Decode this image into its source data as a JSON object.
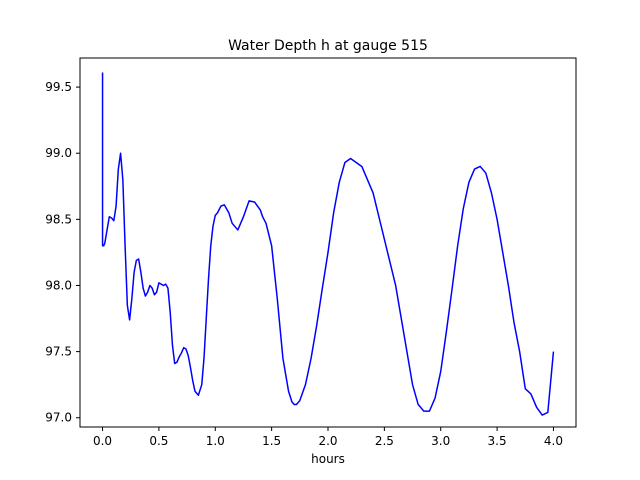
{
  "chart_data": {
    "type": "line",
    "title": "Water Depth h at gauge 515",
    "xlabel": "hours",
    "ylabel": "",
    "xlim": [
      -0.2,
      4.2
    ],
    "ylim": [
      96.93,
      99.72
    ],
    "xticks": [
      0.0,
      0.5,
      1.0,
      1.5,
      2.0,
      2.5,
      3.0,
      3.5,
      4.0
    ],
    "xtick_labels": [
      "0.0",
      "0.5",
      "1.0",
      "1.5",
      "2.0",
      "2.5",
      "3.0",
      "3.5",
      "4.0"
    ],
    "yticks": [
      97.0,
      97.5,
      98.0,
      98.5,
      99.0,
      99.5
    ],
    "ytick_labels": [
      "97.0",
      "97.5",
      "98.0",
      "98.5",
      "99.0",
      "99.5"
    ],
    "grid": false,
    "legend": "none",
    "series": [
      {
        "color": "#0000ff",
        "x": [
          0.0,
          0.0,
          0.01,
          0.02,
          0.04,
          0.06,
          0.08,
          0.1,
          0.12,
          0.14,
          0.16,
          0.18,
          0.2,
          0.22,
          0.24,
          0.26,
          0.28,
          0.3,
          0.32,
          0.34,
          0.36,
          0.38,
          0.4,
          0.42,
          0.44,
          0.46,
          0.48,
          0.5,
          0.52,
          0.54,
          0.56,
          0.58,
          0.6,
          0.62,
          0.64,
          0.66,
          0.68,
          0.7,
          0.72,
          0.74,
          0.76,
          0.78,
          0.8,
          0.82,
          0.85,
          0.88,
          0.9,
          0.92,
          0.94,
          0.96,
          0.98,
          1.0,
          1.02,
          1.05,
          1.08,
          1.1,
          1.12,
          1.15,
          1.2,
          1.25,
          1.3,
          1.35,
          1.4,
          1.42,
          1.45,
          1.5,
          1.55,
          1.6,
          1.65,
          1.68,
          1.7,
          1.72,
          1.75,
          1.8,
          1.85,
          1.9,
          1.95,
          2.0,
          2.05,
          2.1,
          2.15,
          2.2,
          2.3,
          2.4,
          2.5,
          2.6,
          2.65,
          2.7,
          2.75,
          2.8,
          2.85,
          2.9,
          2.95,
          3.0,
          3.05,
          3.1,
          3.15,
          3.2,
          3.25,
          3.3,
          3.35,
          3.4,
          3.45,
          3.5,
          3.55,
          3.6,
          3.65,
          3.7,
          3.75,
          3.8,
          3.85,
          3.9,
          3.95,
          4.0
        ],
        "y": [
          99.61,
          98.3,
          98.3,
          98.32,
          98.42,
          98.52,
          98.51,
          98.49,
          98.6,
          98.88,
          99.0,
          98.8,
          98.3,
          97.85,
          97.74,
          97.9,
          98.1,
          98.19,
          98.2,
          98.1,
          97.98,
          97.92,
          97.95,
          98.0,
          97.98,
          97.93,
          97.95,
          98.02,
          98.01,
          98.0,
          98.01,
          97.98,
          97.8,
          97.55,
          97.41,
          97.42,
          97.46,
          97.49,
          97.53,
          97.52,
          97.47,
          97.38,
          97.28,
          97.2,
          97.17,
          97.25,
          97.45,
          97.75,
          98.05,
          98.3,
          98.45,
          98.53,
          98.55,
          98.6,
          98.61,
          98.58,
          98.55,
          98.47,
          98.42,
          98.52,
          98.64,
          98.63,
          98.57,
          98.52,
          98.47,
          98.3,
          97.9,
          97.45,
          97.2,
          97.12,
          97.1,
          97.1,
          97.13,
          97.25,
          97.45,
          97.7,
          97.98,
          98.25,
          98.55,
          98.78,
          98.93,
          98.96,
          98.9,
          98.7,
          98.35,
          98.0,
          97.75,
          97.5,
          97.25,
          97.1,
          97.05,
          97.05,
          97.15,
          97.35,
          97.65,
          97.97,
          98.3,
          98.58,
          98.78,
          98.88,
          98.9,
          98.85,
          98.7,
          98.5,
          98.25,
          98.0,
          97.72,
          97.5,
          97.22,
          97.18,
          97.08,
          97.02,
          97.04,
          97.5
        ],
        "comment_dense": "series values end"
      }
    ]
  }
}
